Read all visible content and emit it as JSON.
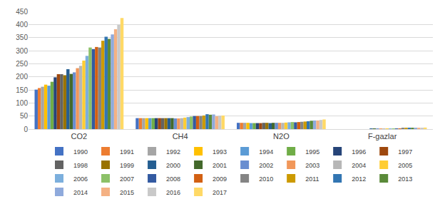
{
  "chart_data": {
    "type": "bar",
    "categories": [
      "CO2",
      "CH4",
      "N2O",
      "F-gazlar"
    ],
    "ylim": [
      0,
      450
    ],
    "yticks": [
      0,
      50,
      100,
      150,
      200,
      250,
      300,
      350,
      400,
      450
    ],
    "grid": true,
    "legend": "bottom",
    "series": [
      {
        "name": "1990",
        "color": "#4472C4",
        "values": [
          151,
          42,
          24,
          0
        ]
      },
      {
        "name": "1991",
        "color": "#ED7D31",
        "values": [
          157,
          42,
          24,
          0
        ]
      },
      {
        "name": "1992",
        "color": "#A5A5A5",
        "values": [
          162,
          42,
          24,
          0
        ]
      },
      {
        "name": "1993",
        "color": "#FFC000",
        "values": [
          170,
          42,
          24,
          0
        ]
      },
      {
        "name": "1994",
        "color": "#5B9BD5",
        "values": [
          166,
          42,
          23,
          0
        ]
      },
      {
        "name": "1995",
        "color": "#70AD47",
        "values": [
          181,
          42,
          23,
          0
        ]
      },
      {
        "name": "1996",
        "color": "#264478",
        "values": [
          198,
          42,
          23,
          0
        ]
      },
      {
        "name": "1997",
        "color": "#9E480E",
        "values": [
          210,
          42,
          23,
          0
        ]
      },
      {
        "name": "1998",
        "color": "#636363",
        "values": [
          210,
          42,
          24,
          0
        ]
      },
      {
        "name": "1999",
        "color": "#997300",
        "values": [
          206,
          42,
          24,
          0
        ]
      },
      {
        "name": "2000",
        "color": "#255E91",
        "values": [
          229,
          42,
          23,
          0.5
        ]
      },
      {
        "name": "2001",
        "color": "#43682B",
        "values": [
          211,
          42,
          24,
          0.5
        ]
      },
      {
        "name": "2002",
        "color": "#698ED0",
        "values": [
          217,
          41,
          24,
          0.6
        ]
      },
      {
        "name": "2003",
        "color": "#F1975A",
        "values": [
          233,
          41,
          24,
          0.8
        ]
      },
      {
        "name": "2004",
        "color": "#B7B7B7",
        "values": [
          242,
          42,
          24,
          1
        ]
      },
      {
        "name": "2005",
        "color": "#FFCD33",
        "values": [
          262,
          44,
          25,
          1.5
        ]
      },
      {
        "name": "2006",
        "color": "#7CAFDD",
        "values": [
          280,
          46,
          26,
          2
        ]
      },
      {
        "name": "2007",
        "color": "#8CC168",
        "values": [
          312,
          48,
          27,
          2.5
        ]
      },
      {
        "name": "2008",
        "color": "#335AA1",
        "values": [
          306,
          50,
          26,
          2.5
        ]
      },
      {
        "name": "2009",
        "color": "#D26012",
        "values": [
          314,
          50,
          27,
          2.5
        ]
      },
      {
        "name": "2010",
        "color": "#848484",
        "values": [
          312,
          50,
          28,
          3
        ]
      },
      {
        "name": "2011",
        "color": "#CC9A00",
        "values": [
          338,
          52,
          29,
          3.5
        ]
      },
      {
        "name": "2012",
        "color": "#3275B2",
        "values": [
          353,
          57,
          30,
          4
        ]
      },
      {
        "name": "2013",
        "color": "#5A8A39",
        "values": [
          345,
          55,
          32,
          4
        ]
      },
      {
        "name": "2014",
        "color": "#8FAADC",
        "values": [
          362,
          56,
          33,
          4.5
        ]
      },
      {
        "name": "2015",
        "color": "#F4B183",
        "values": [
          382,
          49,
          33,
          5
        ]
      },
      {
        "name": "2016",
        "color": "#C9C9C9",
        "values": [
          399,
          51,
          35,
          5.5
        ]
      },
      {
        "name": "2017",
        "color": "#FFD966",
        "values": [
          425,
          52,
          37,
          6
        ]
      }
    ]
  }
}
